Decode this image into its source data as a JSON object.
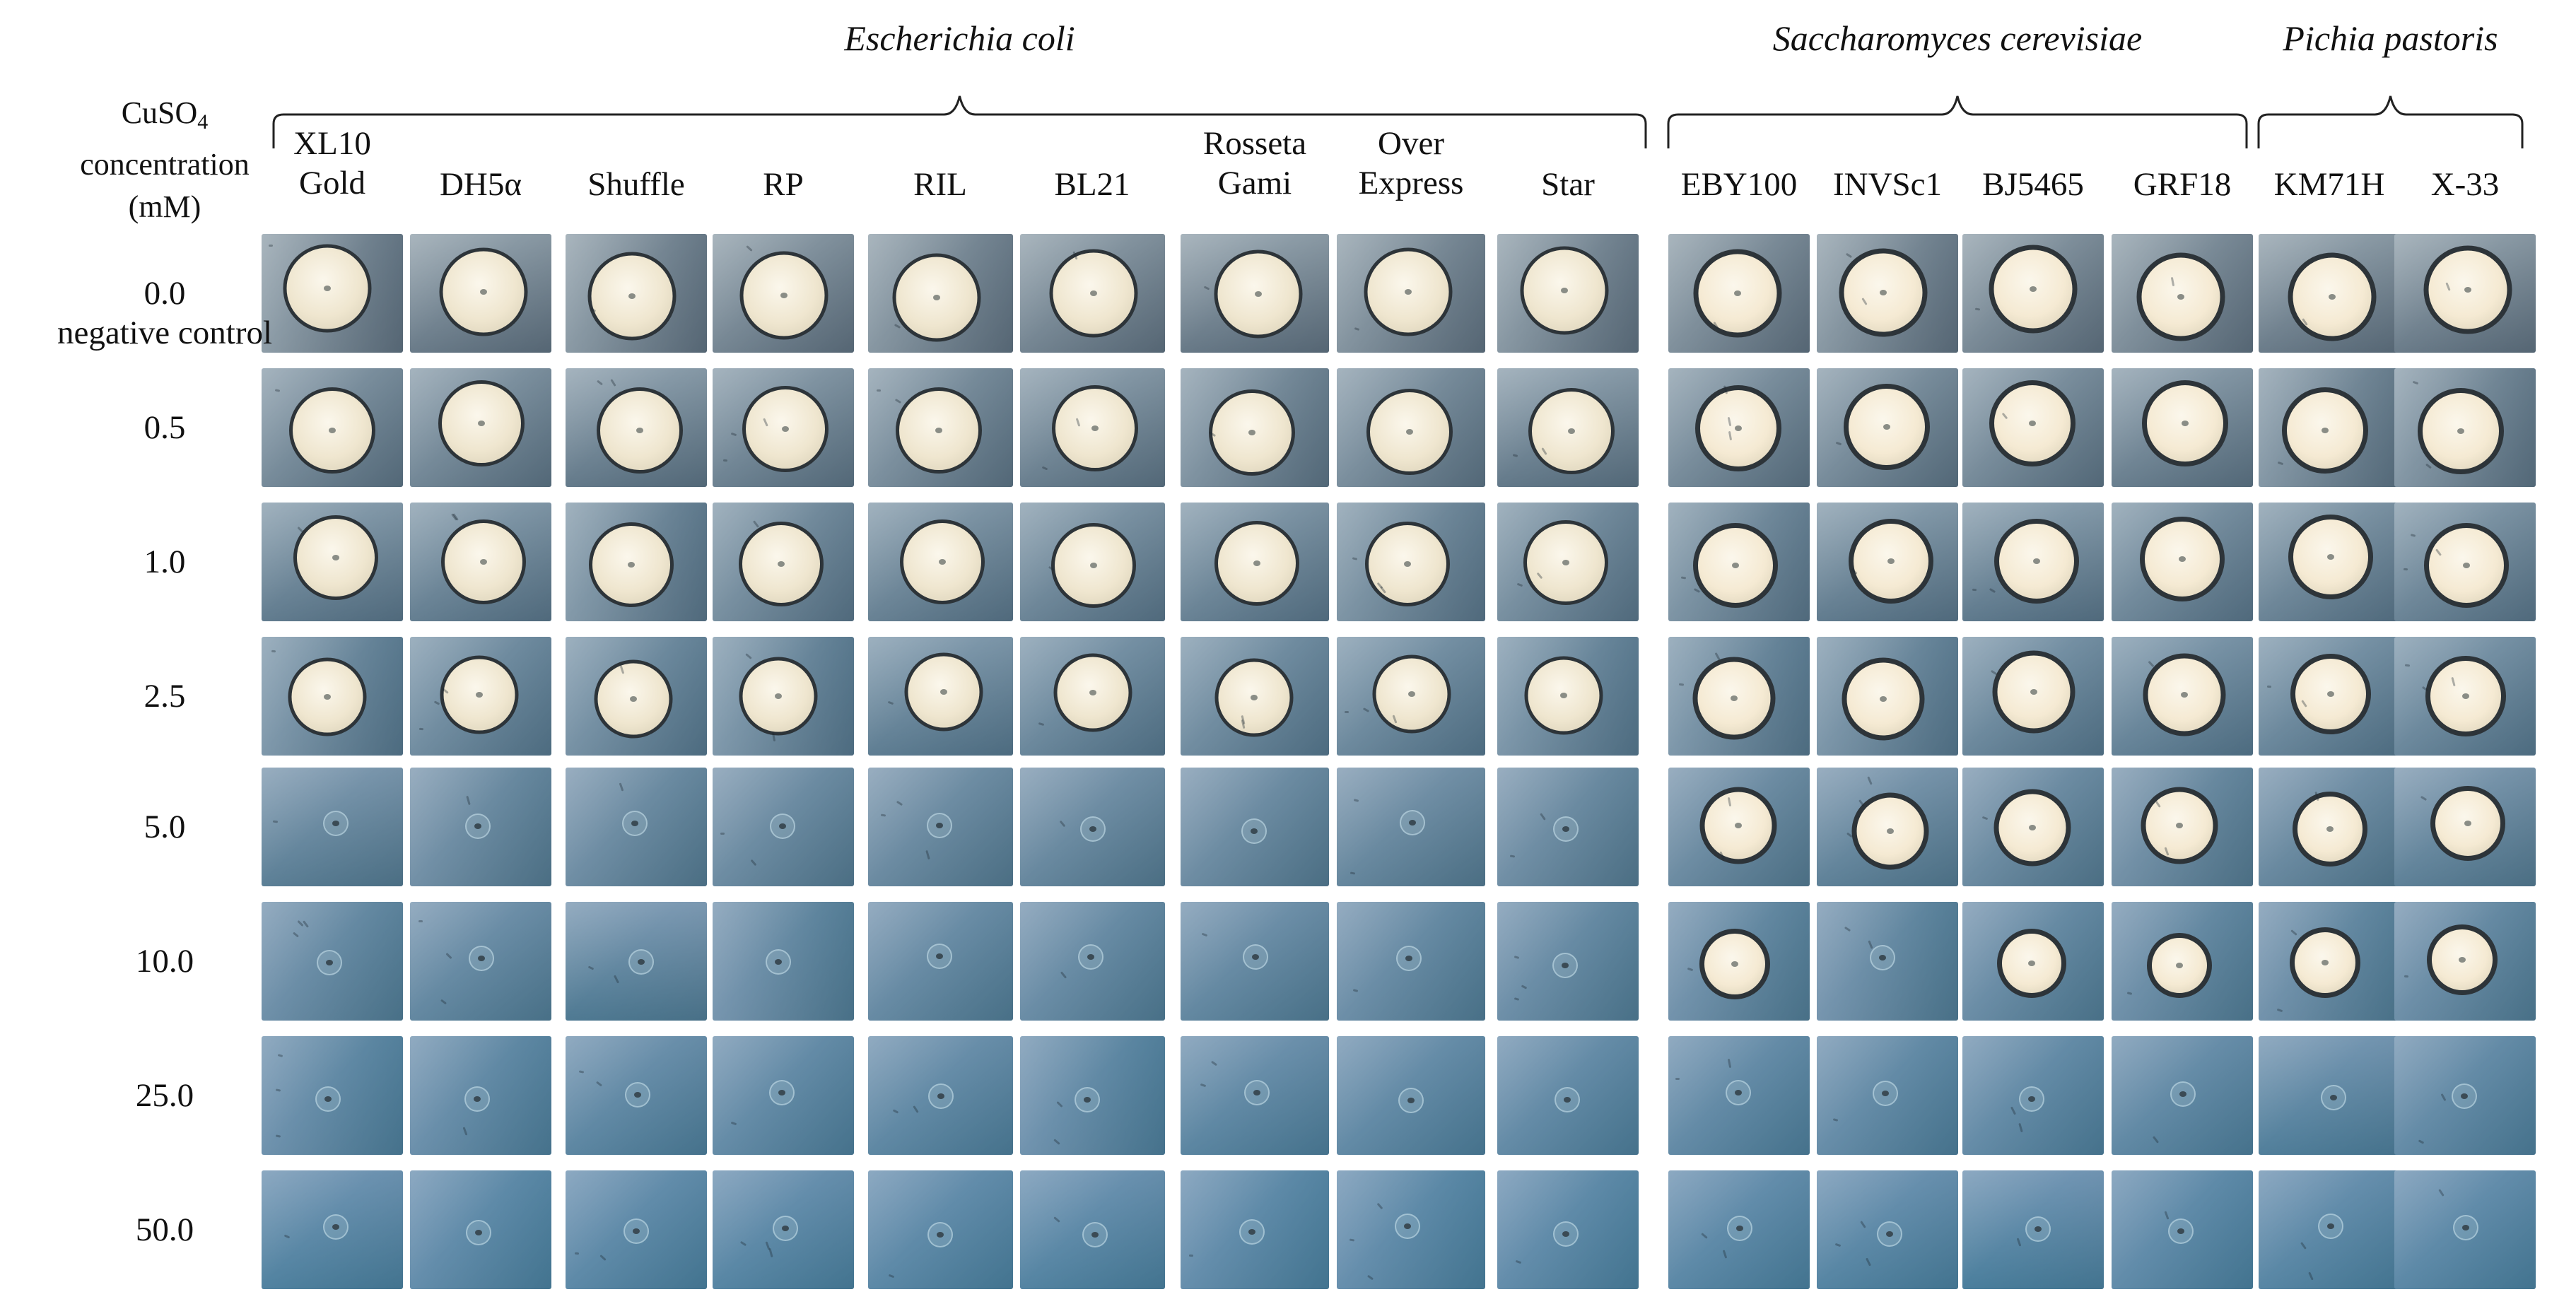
{
  "figure": {
    "axis_title_lines": [
      "CuSO",
      "concentration",
      "(mM)"
    ],
    "axis_title_subscript": "4",
    "species": [
      {
        "name": "Escherichia coli",
        "strains": [
          [
            "XL10",
            "Gold"
          ],
          [
            "DH5α"
          ],
          [
            "Shuffle"
          ],
          [
            "RP"
          ],
          [
            "RIL"
          ],
          [
            "BL21"
          ],
          [
            "Rosseta",
            "Gami"
          ],
          [
            "Over",
            "Express"
          ],
          [
            "Star"
          ]
        ]
      },
      {
        "name": "Saccharomyces cerevisiae",
        "strains": [
          [
            "EBY100"
          ],
          [
            "INVSc1"
          ],
          [
            "BJ5465"
          ],
          [
            "GRF18"
          ]
        ]
      },
      {
        "name": "Pichia pastoris",
        "strains": [
          [
            "KM71H"
          ],
          [
            "X-33"
          ]
        ]
      }
    ],
    "concentrations": [
      {
        "value": "0.0",
        "note": "negative control"
      },
      {
        "value": "0.5"
      },
      {
        "value": "1.0"
      },
      {
        "value": "2.5"
      },
      {
        "value": "5.0"
      },
      {
        "value": "10.0"
      },
      {
        "value": "25.0"
      },
      {
        "value": "50.0"
      }
    ],
    "growth": {
      "escherichia_coli": [
        1.0,
        0.95,
        0.9,
        0.75,
        0.1,
        0.08,
        0.07,
        0.06
      ],
      "saccharomyces_cerevisiae": [
        1.0,
        0.95,
        0.9,
        0.85,
        0.7,
        [
          0.55,
          0.15,
          0.5,
          0.4
        ],
        0.12,
        0.1
      ],
      "pichia_pastoris": [
        1.0,
        0.95,
        0.9,
        0.8,
        0.65,
        0.55,
        0.1,
        0.08
      ]
    },
    "colors": {
      "colony": "#efe6cf",
      "yeast_colony": "#f5ead3",
      "plate_light": "#9aa6b0",
      "plate_dark": "#5b6e7e",
      "plate_cyan": "#5fa2b8"
    }
  }
}
